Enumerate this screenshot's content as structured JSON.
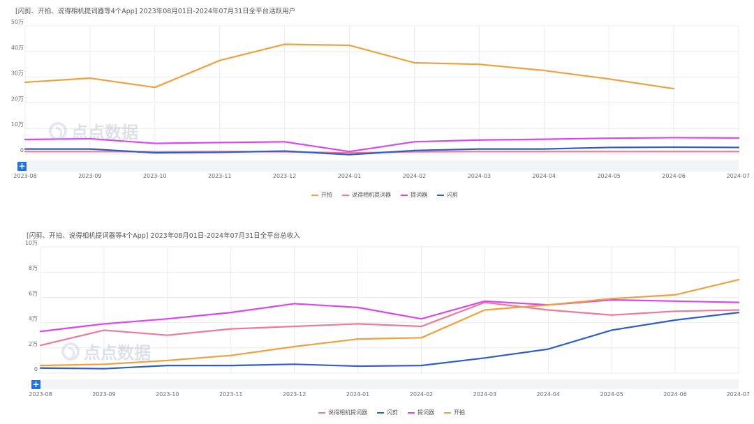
{
  "colors": {
    "kaipai": "#f0a03c",
    "shuode": "#f07898",
    "tici": "#d946ef",
    "shanjian": "#2d5fc4",
    "accent": "#1a73e8"
  },
  "watermark": {
    "text": "点点数据",
    "icon": "diandian-logo-icon"
  },
  "chart_data": [
    {
      "type": "line",
      "title": "[闪剪、开拍、说得相机提词器等4个App] 2023年08月01日-2024年07月31日全平台活跃用户",
      "categories": [
        "2023-08",
        "2023-09",
        "2023-10",
        "2023-11",
        "2023-12",
        "2024-01",
        "2024-02",
        "2024-03",
        "2024-04",
        "2024-05",
        "2024-06",
        "2024-07"
      ],
      "y_ticks": [
        "0",
        "10万",
        "20万",
        "30万",
        "40万",
        "50万"
      ],
      "ylim": [
        0,
        500000
      ],
      "legend": [
        "开拍",
        "说得相机提词器",
        "提词器",
        "闪剪"
      ],
      "series": [
        {
          "name": "开拍",
          "color_key": "kaipai",
          "values": [
            280000,
            296000,
            260000,
            365000,
            428000,
            424000,
            356000,
            350000,
            326000,
            293000,
            255000,
            null
          ]
        },
        {
          "name": "说得相机提词器",
          "color_key": "shuode",
          "values": [
            10000,
            10000,
            9000,
            10000,
            9000,
            5000,
            9000,
            10000,
            10000,
            10000,
            10000,
            10000
          ]
        },
        {
          "name": "提词器",
          "color_key": "tici",
          "values": [
            57000,
            60000,
            42000,
            45000,
            48000,
            10000,
            48000,
            55000,
            58000,
            62000,
            64000,
            63000
          ]
        },
        {
          "name": "闪剪",
          "color_key": "shanjian",
          "values": [
            20000,
            20000,
            5000,
            7000,
            12000,
            -2000,
            14000,
            20000,
            20000,
            26000,
            27000,
            26000
          ]
        }
      ]
    },
    {
      "type": "line",
      "title": "[闪剪、开拍、说得相机提词器等4个App] 2023年08月01日-2024年07月31日全平台总收入",
      "categories": [
        "2023-08",
        "2023-09",
        "2023-10",
        "2023-11",
        "2023-12",
        "2024-01",
        "2024-02",
        "2024-03",
        "2024-04",
        "2024-05",
        "2024-06",
        "2024-07"
      ],
      "y_ticks": [
        "0",
        "2万",
        "4万",
        "6万",
        "8万",
        "10万"
      ],
      "ylim": [
        0,
        100000
      ],
      "legend": [
        "说得相机提词器",
        "闪剪",
        "提词器",
        "开拍"
      ],
      "series": [
        {
          "name": "说得相机提词器",
          "color_key": "shuode",
          "values": [
            22000,
            34000,
            30000,
            35000,
            37000,
            39000,
            37000,
            56000,
            50000,
            46000,
            49000,
            50000
          ]
        },
        {
          "name": "闪剪",
          "color_key": "shanjian",
          "values": [
            4000,
            3500,
            6000,
            6000,
            7000,
            5500,
            6000,
            12000,
            19000,
            34000,
            42000,
            48000
          ]
        },
        {
          "name": "提词器",
          "color_key": "tici",
          "values": [
            33000,
            39000,
            43000,
            48000,
            55000,
            52000,
            43000,
            57000,
            54000,
            58000,
            57000,
            56000
          ]
        },
        {
          "name": "开拍",
          "color_key": "kaipai",
          "values": [
            6000,
            7000,
            10000,
            14000,
            21000,
            27000,
            28000,
            50000,
            54000,
            59000,
            62000,
            74000
          ]
        }
      ]
    }
  ]
}
